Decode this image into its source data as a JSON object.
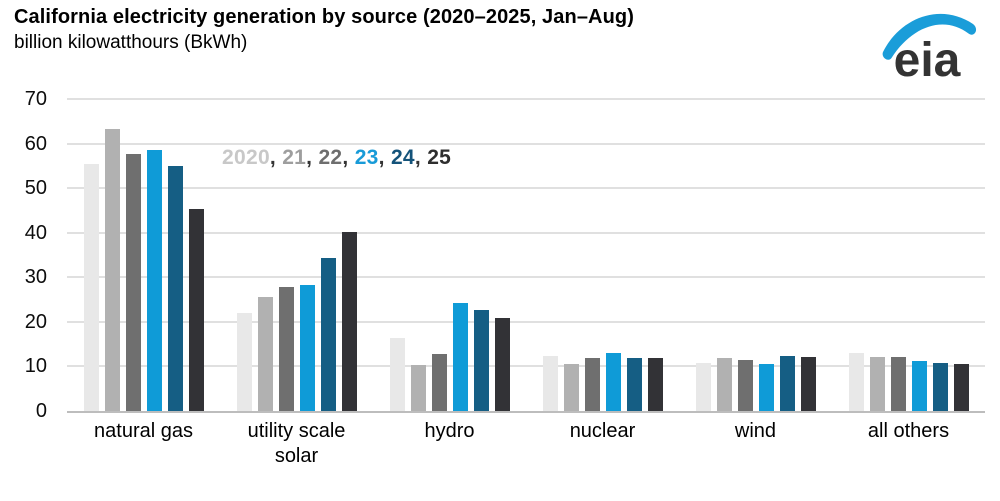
{
  "header": {
    "title": "California electricity generation by source (2020–2025, Jan–Aug)",
    "subtitle": "billion kilowatthours (BkWh)"
  },
  "logo": {
    "text": "eia",
    "swoosh_color": "#1a9dd9",
    "text_color": "#333333"
  },
  "legend": {
    "separator": ", ",
    "separator_color": "#333333",
    "items": [
      {
        "label": "2020",
        "color": "#c8c8c8"
      },
      {
        "label": "21",
        "color": "#9e9e9e"
      },
      {
        "label": "22",
        "color": "#6e6e6e"
      },
      {
        "label": "23",
        "color": "#189bd8"
      },
      {
        "label": "24",
        "color": "#14537a"
      },
      {
        "label": "25",
        "color": "#2e2e2e"
      }
    ]
  },
  "chart_data": {
    "type": "bar",
    "title": "California electricity generation by source (2020–2025, Jan–Aug)",
    "subtitle_unit_label": "billion kilowatthours (BkWh)",
    "xlabel": "",
    "ylabel": "billion kilowatthours (BkWh)",
    "ylim": [
      0,
      70
    ],
    "yticks": [
      0,
      10,
      20,
      30,
      40,
      50,
      60,
      70
    ],
    "grid": true,
    "legend_position": "inside-top-left",
    "legend_style": "colored-text-inline",
    "categories": [
      "natural gas",
      "utility scale solar",
      "hydro",
      "nuclear",
      "wind",
      "all others"
    ],
    "series": [
      {
        "name": "2020",
        "color": "#e8e8e8",
        "values": [
          55.4,
          21.9,
          16.3,
          12.4,
          10.7,
          13.0
        ]
      },
      {
        "name": "21",
        "color": "#b1b1b1",
        "values": [
          63.3,
          25.5,
          10.3,
          10.6,
          11.9,
          12.2
        ]
      },
      {
        "name": "22",
        "color": "#6f6f6f",
        "values": [
          57.7,
          27.9,
          12.9,
          12.0,
          11.4,
          12.2
        ]
      },
      {
        "name": "23",
        "color": "#0f9bd7",
        "values": [
          58.6,
          28.3,
          24.3,
          13.0,
          10.6,
          11.3
        ]
      },
      {
        "name": "24",
        "color": "#155e84",
        "values": [
          54.9,
          34.3,
          22.6,
          12.0,
          12.3,
          10.7
        ]
      },
      {
        "name": "25",
        "color": "#323236",
        "values": [
          45.4,
          40.2,
          20.9,
          11.9,
          12.2,
          10.5
        ]
      }
    ]
  }
}
